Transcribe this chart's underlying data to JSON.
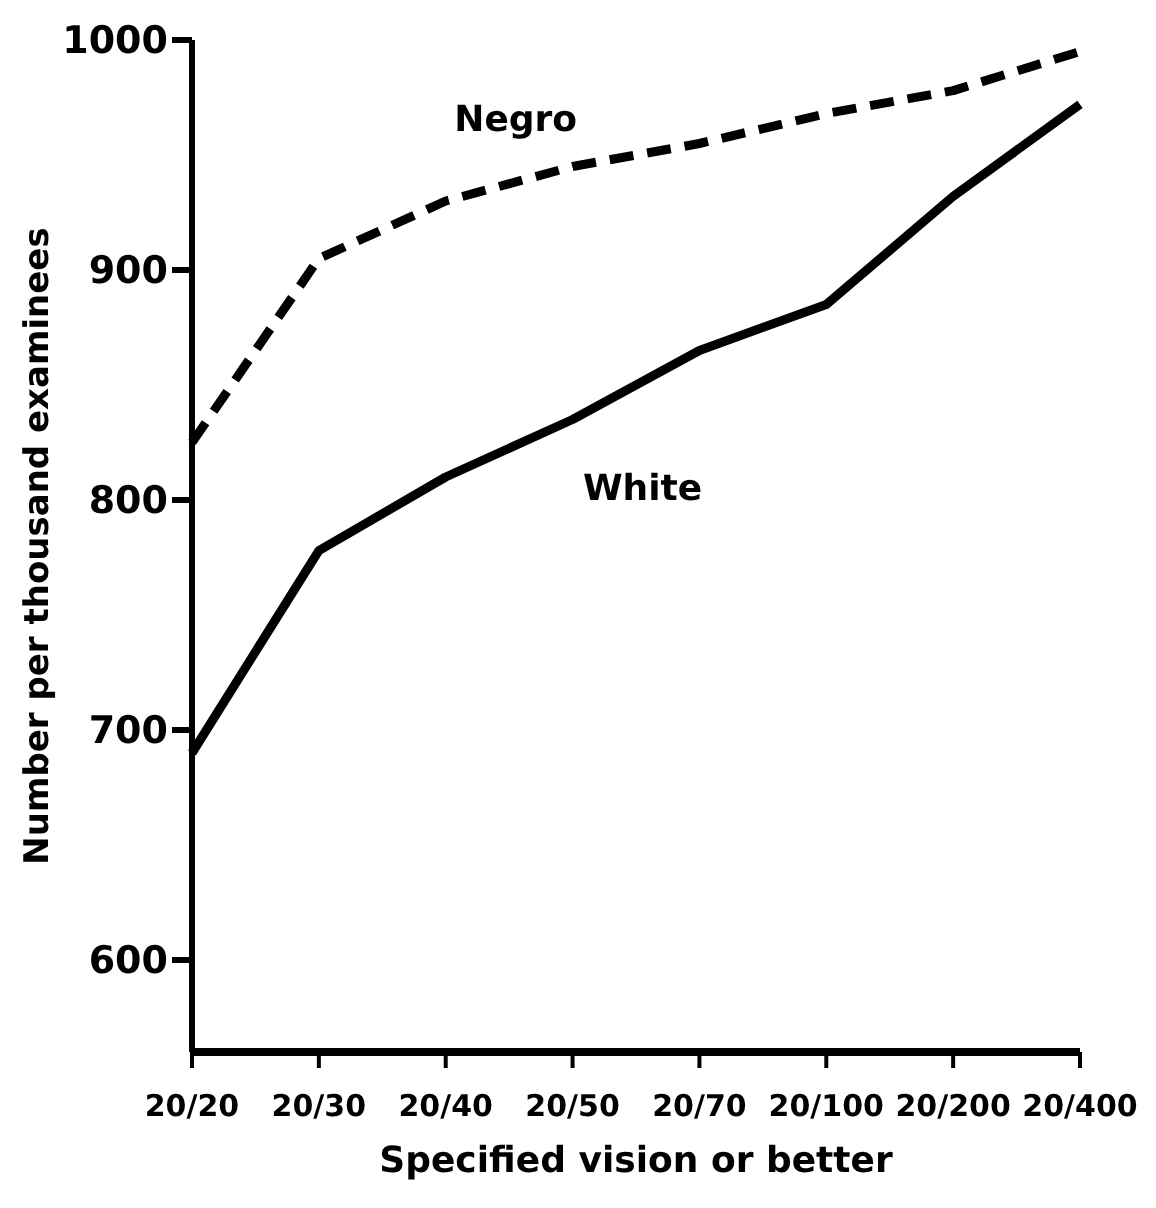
{
  "chart_data": {
    "type": "line",
    "xlabel": "Specified vision or better",
    "ylabel": "Number per thousand examinees",
    "categories": [
      "20/20",
      "20/30",
      "20/40",
      "20/50",
      "20/70",
      "20/100",
      "20/200",
      "20/400"
    ],
    "series": [
      {
        "name": "Negro",
        "color": "#000000",
        "line_style": "dashed",
        "values": [
          825,
          905,
          930,
          945,
          955,
          968,
          978,
          995
        ]
      },
      {
        "name": "White",
        "color": "#000000",
        "line_style": "solid",
        "values": [
          690,
          778,
          810,
          835,
          865,
          885,
          932,
          972
        ]
      }
    ],
    "ylim": [
      560,
      1000
    ],
    "yticks": [
      600,
      700,
      800,
      900,
      1000
    ],
    "legend": false,
    "marker": "none"
  }
}
